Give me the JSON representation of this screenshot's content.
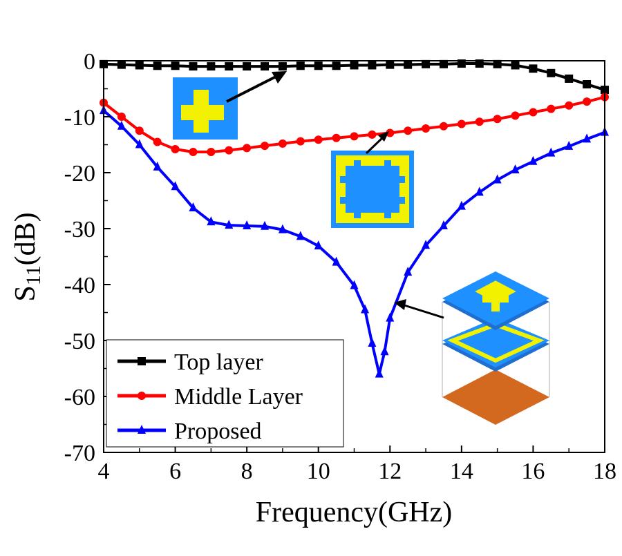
{
  "chart_data": {
    "type": "line",
    "xlabel": "Frequency(GHz)",
    "ylabel": "S11(dB)",
    "ylabel_parts": {
      "main": "S",
      "sub": "11",
      "unit": "(dB)"
    },
    "xlim": [
      4,
      18
    ],
    "ylim": [
      -70,
      0
    ],
    "xticks": [
      4,
      6,
      8,
      10,
      12,
      14,
      16,
      18
    ],
    "yticks": [
      0,
      -10,
      -20,
      -30,
      -40,
      -50,
      -60,
      -70
    ],
    "grid": false,
    "legend_position": "bottom-left",
    "series": [
      {
        "name": "Top layer",
        "color": "#000000",
        "marker": "square",
        "x": [
          4,
          4.5,
          5,
          5.5,
          6,
          6.5,
          7,
          7.5,
          8,
          8.5,
          9,
          9.5,
          10,
          10.5,
          11,
          11.5,
          12,
          12.5,
          13,
          13.5,
          14,
          14.5,
          15,
          15.5,
          16,
          16.5,
          17,
          17.5,
          18
        ],
        "y": [
          -0.6,
          -0.7,
          -0.8,
          -0.9,
          -0.9,
          -1.0,
          -1.0,
          -1.0,
          -1.0,
          -1.0,
          -1.0,
          -0.9,
          -0.9,
          -0.9,
          -0.8,
          -0.8,
          -0.7,
          -0.7,
          -0.6,
          -0.6,
          -0.5,
          -0.5,
          -0.6,
          -0.8,
          -1.4,
          -2.2,
          -3.2,
          -4.2,
          -5.2
        ]
      },
      {
        "name": "Middle Layer",
        "color": "#ff0000",
        "marker": "circle",
        "x": [
          4,
          4.5,
          5,
          5.5,
          6,
          6.5,
          7,
          7.5,
          8,
          8.5,
          9,
          9.5,
          10,
          10.5,
          11,
          11.5,
          12,
          12.5,
          13,
          13.5,
          14,
          14.5,
          15,
          15.5,
          16,
          16.5,
          17,
          17.5,
          18
        ],
        "y": [
          -7.5,
          -10,
          -12.5,
          -14.5,
          -15.8,
          -16.3,
          -16.3,
          -16,
          -15.6,
          -15.2,
          -14.8,
          -14.4,
          -14.1,
          -13.8,
          -13.5,
          -13.2,
          -12.9,
          -12.5,
          -12.1,
          -11.7,
          -11.3,
          -10.9,
          -10.4,
          -9.8,
          -9.2,
          -8.6,
          -8.0,
          -7.3,
          -6.5
        ]
      },
      {
        "name": "Proposed",
        "color": "#0000ff",
        "marker": "triangle",
        "x": [
          4,
          4.5,
          5,
          5.5,
          6,
          6.5,
          7,
          7.5,
          8,
          8.5,
          9,
          9.5,
          10,
          10.5,
          11,
          11.3,
          11.5,
          11.7,
          11.85,
          12,
          12.5,
          13,
          13.5,
          14,
          14.5,
          15,
          15.5,
          16,
          16.5,
          17,
          17.5,
          18
        ],
        "y": [
          -8.9,
          -11.7,
          -15,
          -19,
          -22.5,
          -26.3,
          -28.8,
          -29.4,
          -29.5,
          -29.6,
          -30.2,
          -31.4,
          -33.1,
          -36,
          -40.2,
          -44.5,
          -50.5,
          -56,
          -52,
          -46,
          -37.8,
          -33,
          -29.5,
          -26,
          -23.5,
          -21.3,
          -19.5,
          -18,
          -16.5,
          -15.3,
          -14,
          -12.8
        ]
      }
    ]
  },
  "colors": {
    "patch_blue": "#1e90ff",
    "patch_yellow": "#f2f200",
    "ground_copper": "#d2691e"
  }
}
